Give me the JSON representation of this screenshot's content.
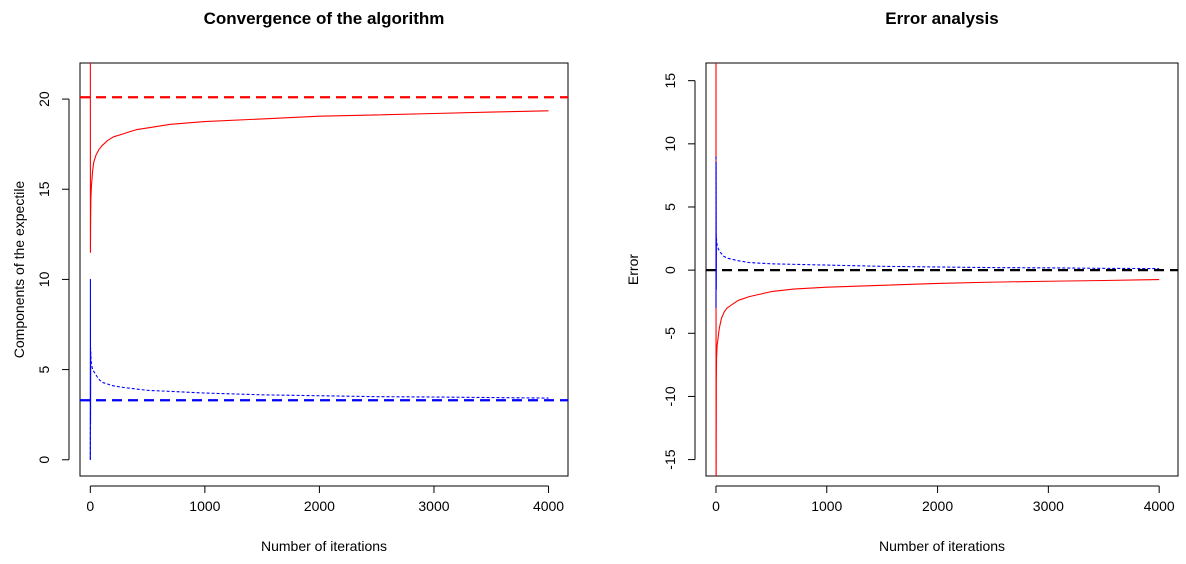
{
  "chart_data": [
    {
      "type": "line",
      "title": "Convergence of the algorithm",
      "xlabel": "Number of iterations",
      "ylabel": "Components of the expectile",
      "xlim": [
        -90,
        4170
      ],
      "ylim": [
        -0.9,
        22
      ],
      "xticks": [
        0,
        1000,
        2000,
        3000,
        4000
      ],
      "yticks": [
        0,
        5,
        10,
        15,
        20
      ],
      "grid": false,
      "series": [
        {
          "color": "#ff0000",
          "style": "solid",
          "x": [
            0,
            1,
            3,
            5,
            10,
            20,
            30,
            50,
            75,
            100,
            150,
            200,
            300,
            400,
            500,
            700,
            1000,
            1500,
            2000,
            2500,
            3000,
            3500,
            4000
          ],
          "y": [
            30,
            11.5,
            13.5,
            14.5,
            15.2,
            16,
            16.5,
            16.9,
            17.2,
            17.4,
            17.7,
            17.9,
            18.1,
            18.3,
            18.4,
            18.6,
            18.75,
            18.9,
            19.05,
            19.12,
            19.2,
            19.28,
            19.35
          ]
        },
        {
          "color": "#0000ff",
          "style": "dotted",
          "x": [
            0,
            1,
            2,
            4,
            6,
            10,
            20,
            40,
            70,
            100,
            150,
            200,
            300,
            500,
            1000,
            1500,
            2000,
            2500,
            3000,
            3500,
            4000
          ],
          "y": [
            0,
            2,
            6.2,
            5.8,
            5.6,
            5.3,
            5,
            4.8,
            4.5,
            4.3,
            4.2,
            4.1,
            4,
            3.85,
            3.7,
            3.6,
            3.55,
            3.5,
            3.48,
            3.45,
            3.42
          ]
        },
        {
          "color": "#0000ff",
          "style": "solid",
          "x": [
            0,
            1,
            2,
            3
          ],
          "y": [
            0,
            10,
            2,
            6
          ]
        }
      ],
      "reference_lines": [
        {
          "y": 20.1,
          "color": "#ff0000",
          "style": "dashed"
        },
        {
          "y": 3.3,
          "color": "#0000ff",
          "style": "dashed"
        }
      ]
    },
    {
      "type": "line",
      "title": "Error analysis",
      "xlabel": "Number of iterations",
      "ylabel": "Error",
      "xlim": [
        -90,
        4170
      ],
      "ylim": [
        -16.3,
        16.4
      ],
      "xticks": [
        0,
        1000,
        2000,
        3000,
        4000
      ],
      "yticks": [
        -15,
        -10,
        -5,
        0,
        5,
        10,
        15
      ],
      "grid": false,
      "series": [
        {
          "color": "#ff0000",
          "style": "solid",
          "x": [
            0,
            1,
            3,
            5,
            10,
            20,
            30,
            50,
            75,
            100,
            150,
            200,
            300,
            400,
            500,
            700,
            1000,
            1500,
            2000,
            2500,
            3000,
            3500,
            4000
          ],
          "y": [
            30,
            -20,
            -9,
            -7,
            -6,
            -5.3,
            -4.6,
            -3.8,
            -3.3,
            -3,
            -2.7,
            -2.4,
            -2.1,
            -1.9,
            -1.7,
            -1.5,
            -1.35,
            -1.2,
            -1.05,
            -0.95,
            -0.88,
            -0.82,
            -0.75
          ]
        },
        {
          "color": "#0000ff",
          "style": "dotted",
          "x": [
            0,
            1,
            2,
            4,
            6,
            10,
            20,
            40,
            70,
            100,
            150,
            200,
            300,
            500,
            1000,
            1500,
            2000,
            2500,
            3000,
            3500,
            4000
          ],
          "y": [
            9,
            -1.5,
            2.8,
            2.5,
            2.3,
            2,
            1.7,
            1.4,
            1.1,
            0.95,
            0.85,
            0.75,
            0.6,
            0.5,
            0.4,
            0.3,
            0.25,
            0.2,
            0.18,
            0.14,
            0.12
          ]
        },
        {
          "color": "#0000ff",
          "style": "solid",
          "x": [
            0,
            1,
            2,
            3
          ],
          "y": [
            -3,
            8.5,
            -1.5,
            2.5
          ]
        }
      ],
      "reference_lines": [
        {
          "y": 0,
          "color": "#000000",
          "style": "dashed"
        }
      ]
    }
  ]
}
